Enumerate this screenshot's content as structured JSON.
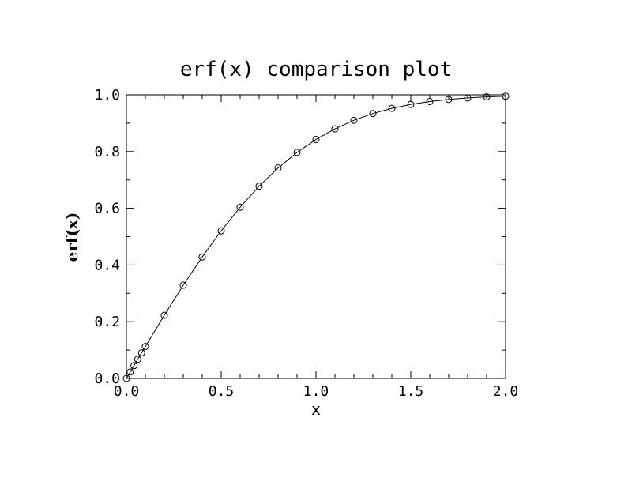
{
  "chart_data": {
    "type": "line",
    "title": "erf(x) comparison plot",
    "xlabel": "x",
    "ylabel": "erf(x)",
    "xlim": [
      0.0,
      2.0
    ],
    "ylim": [
      0.0,
      1.0
    ],
    "x_ticks": [
      0.0,
      0.5,
      1.0,
      1.5,
      2.0
    ],
    "x_tick_labels": [
      "0.0",
      "0.5",
      "1.0",
      "1.5",
      "2.0"
    ],
    "y_ticks": [
      0.0,
      0.2,
      0.4,
      0.6,
      0.8,
      1.0
    ],
    "y_tick_labels": [
      "0.0",
      "0.2",
      "0.4",
      "0.6",
      "0.8",
      "1.0"
    ],
    "grid": false,
    "series": [
      {
        "style": "line",
        "color": "#000000",
        "x": [
          0.0,
          0.02,
          0.04,
          0.06,
          0.08,
          0.1,
          0.2,
          0.3,
          0.4,
          0.5,
          0.6,
          0.7,
          0.8,
          0.9,
          1.0,
          1.1,
          1.2,
          1.3,
          1.4,
          1.5,
          1.6,
          1.7,
          1.8,
          1.9,
          2.0
        ],
        "y": [
          0.0,
          0.0226,
          0.0451,
          0.0676,
          0.0901,
          0.1125,
          0.2227,
          0.3286,
          0.4284,
          0.5205,
          0.6039,
          0.6778,
          0.7421,
          0.7969,
          0.8427,
          0.8802,
          0.9103,
          0.934,
          0.9523,
          0.9661,
          0.9763,
          0.9838,
          0.9891,
          0.9928,
          0.9953
        ]
      },
      {
        "style": "markers",
        "marker": "open-circle",
        "color": "#000000",
        "x": [
          0.0,
          0.02,
          0.04,
          0.06,
          0.08,
          0.1,
          0.2,
          0.3,
          0.4,
          0.5,
          0.6,
          0.7,
          0.8,
          0.9,
          1.0,
          1.1,
          1.2,
          1.3,
          1.4,
          1.5,
          1.6,
          1.7,
          1.8,
          1.9,
          2.0
        ],
        "y": [
          0.0,
          0.0226,
          0.0451,
          0.0676,
          0.0901,
          0.1125,
          0.2227,
          0.3286,
          0.4284,
          0.5205,
          0.6039,
          0.6778,
          0.7421,
          0.7969,
          0.8427,
          0.8802,
          0.9103,
          0.934,
          0.9523,
          0.9661,
          0.9763,
          0.9838,
          0.9891,
          0.9928,
          0.9953
        ]
      }
    ]
  }
}
